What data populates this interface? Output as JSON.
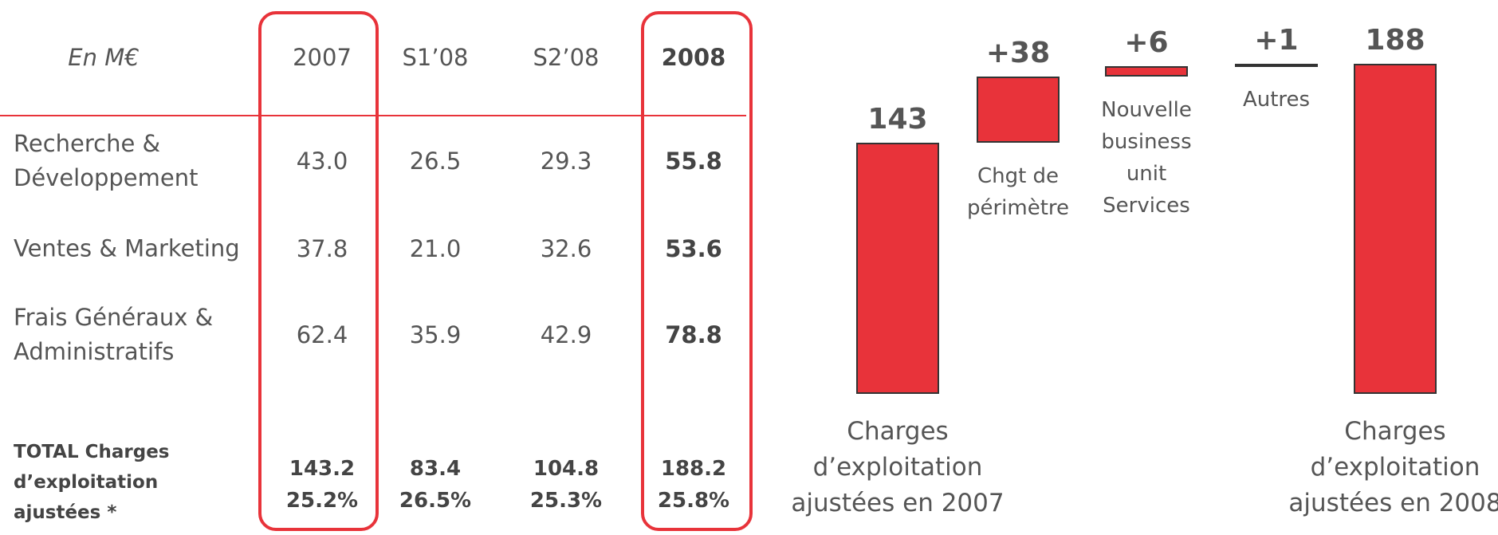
{
  "table": {
    "header": [
      "En M€",
      "2007",
      "S1’08",
      "S2’08",
      "2008"
    ],
    "rows": [
      [
        "Recherche & Développement",
        "43.0",
        "26.5",
        "29.3",
        "55.8"
      ],
      [
        "Ventes & Marketing",
        "37.8",
        "21.0",
        "32.6",
        "53.6"
      ],
      [
        "Frais Généraux & Administratifs",
        "62.4",
        "35.9",
        "42.9",
        "78.8"
      ]
    ],
    "total": {
      "label": "TOTAL Charges d’exploitation ajustées *",
      "values": [
        "143.2",
        "83.4",
        "104.8",
        "188.2"
      ],
      "rates": [
        "25.2%",
        "26.5%",
        "25.3%",
        "25.8%"
      ]
    }
  },
  "chart_data": {
    "type": "waterfall",
    "categories": [
      "Charges d’exploitation ajustées en 2007",
      "Chgt de périmètre",
      "Nouvelle business unit Services",
      "Autres",
      "Charges d’exploitation ajustées en 2008"
    ],
    "values": [
      143,
      38,
      6,
      1,
      188
    ],
    "value_labels": [
      "143",
      "+38",
      "+6",
      "+1",
      "188"
    ],
    "kinds": [
      "total",
      "delta",
      "delta",
      "delta",
      "total"
    ],
    "color": "#e8333a"
  }
}
